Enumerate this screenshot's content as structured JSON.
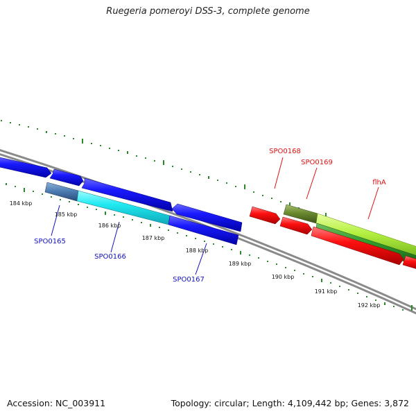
{
  "title": "Ruegeria pomeroyi DSS-3, complete genome",
  "footer": {
    "accession": "Accession: NC_003911",
    "summary": "Topology: circular; Length: 4,109,442 bp; Genes: 3,872"
  },
  "scale_labels": [
    "184 kbp",
    "185 kbp",
    "186 kbp",
    "187 kbp",
    "188 kbp",
    "189 kbp",
    "190 kbp",
    "191 kbp",
    "192 kbp"
  ],
  "gene_labels": [
    "SPO0165",
    "SPO0166",
    "SPO0167",
    "SPO0168",
    "SPO0169",
    "flhA"
  ],
  "colors": {
    "forward_blue": "#1010e0",
    "cyan": "#20e8f0",
    "red": "#f01010",
    "olive": "#6a8a30",
    "light_green": "#b4f040",
    "dark_green": "#30902a",
    "backbone": "#909090",
    "tick_green": "#2a8a2a",
    "label_blue": "#1010c0",
    "label_red": "#e01010"
  }
}
